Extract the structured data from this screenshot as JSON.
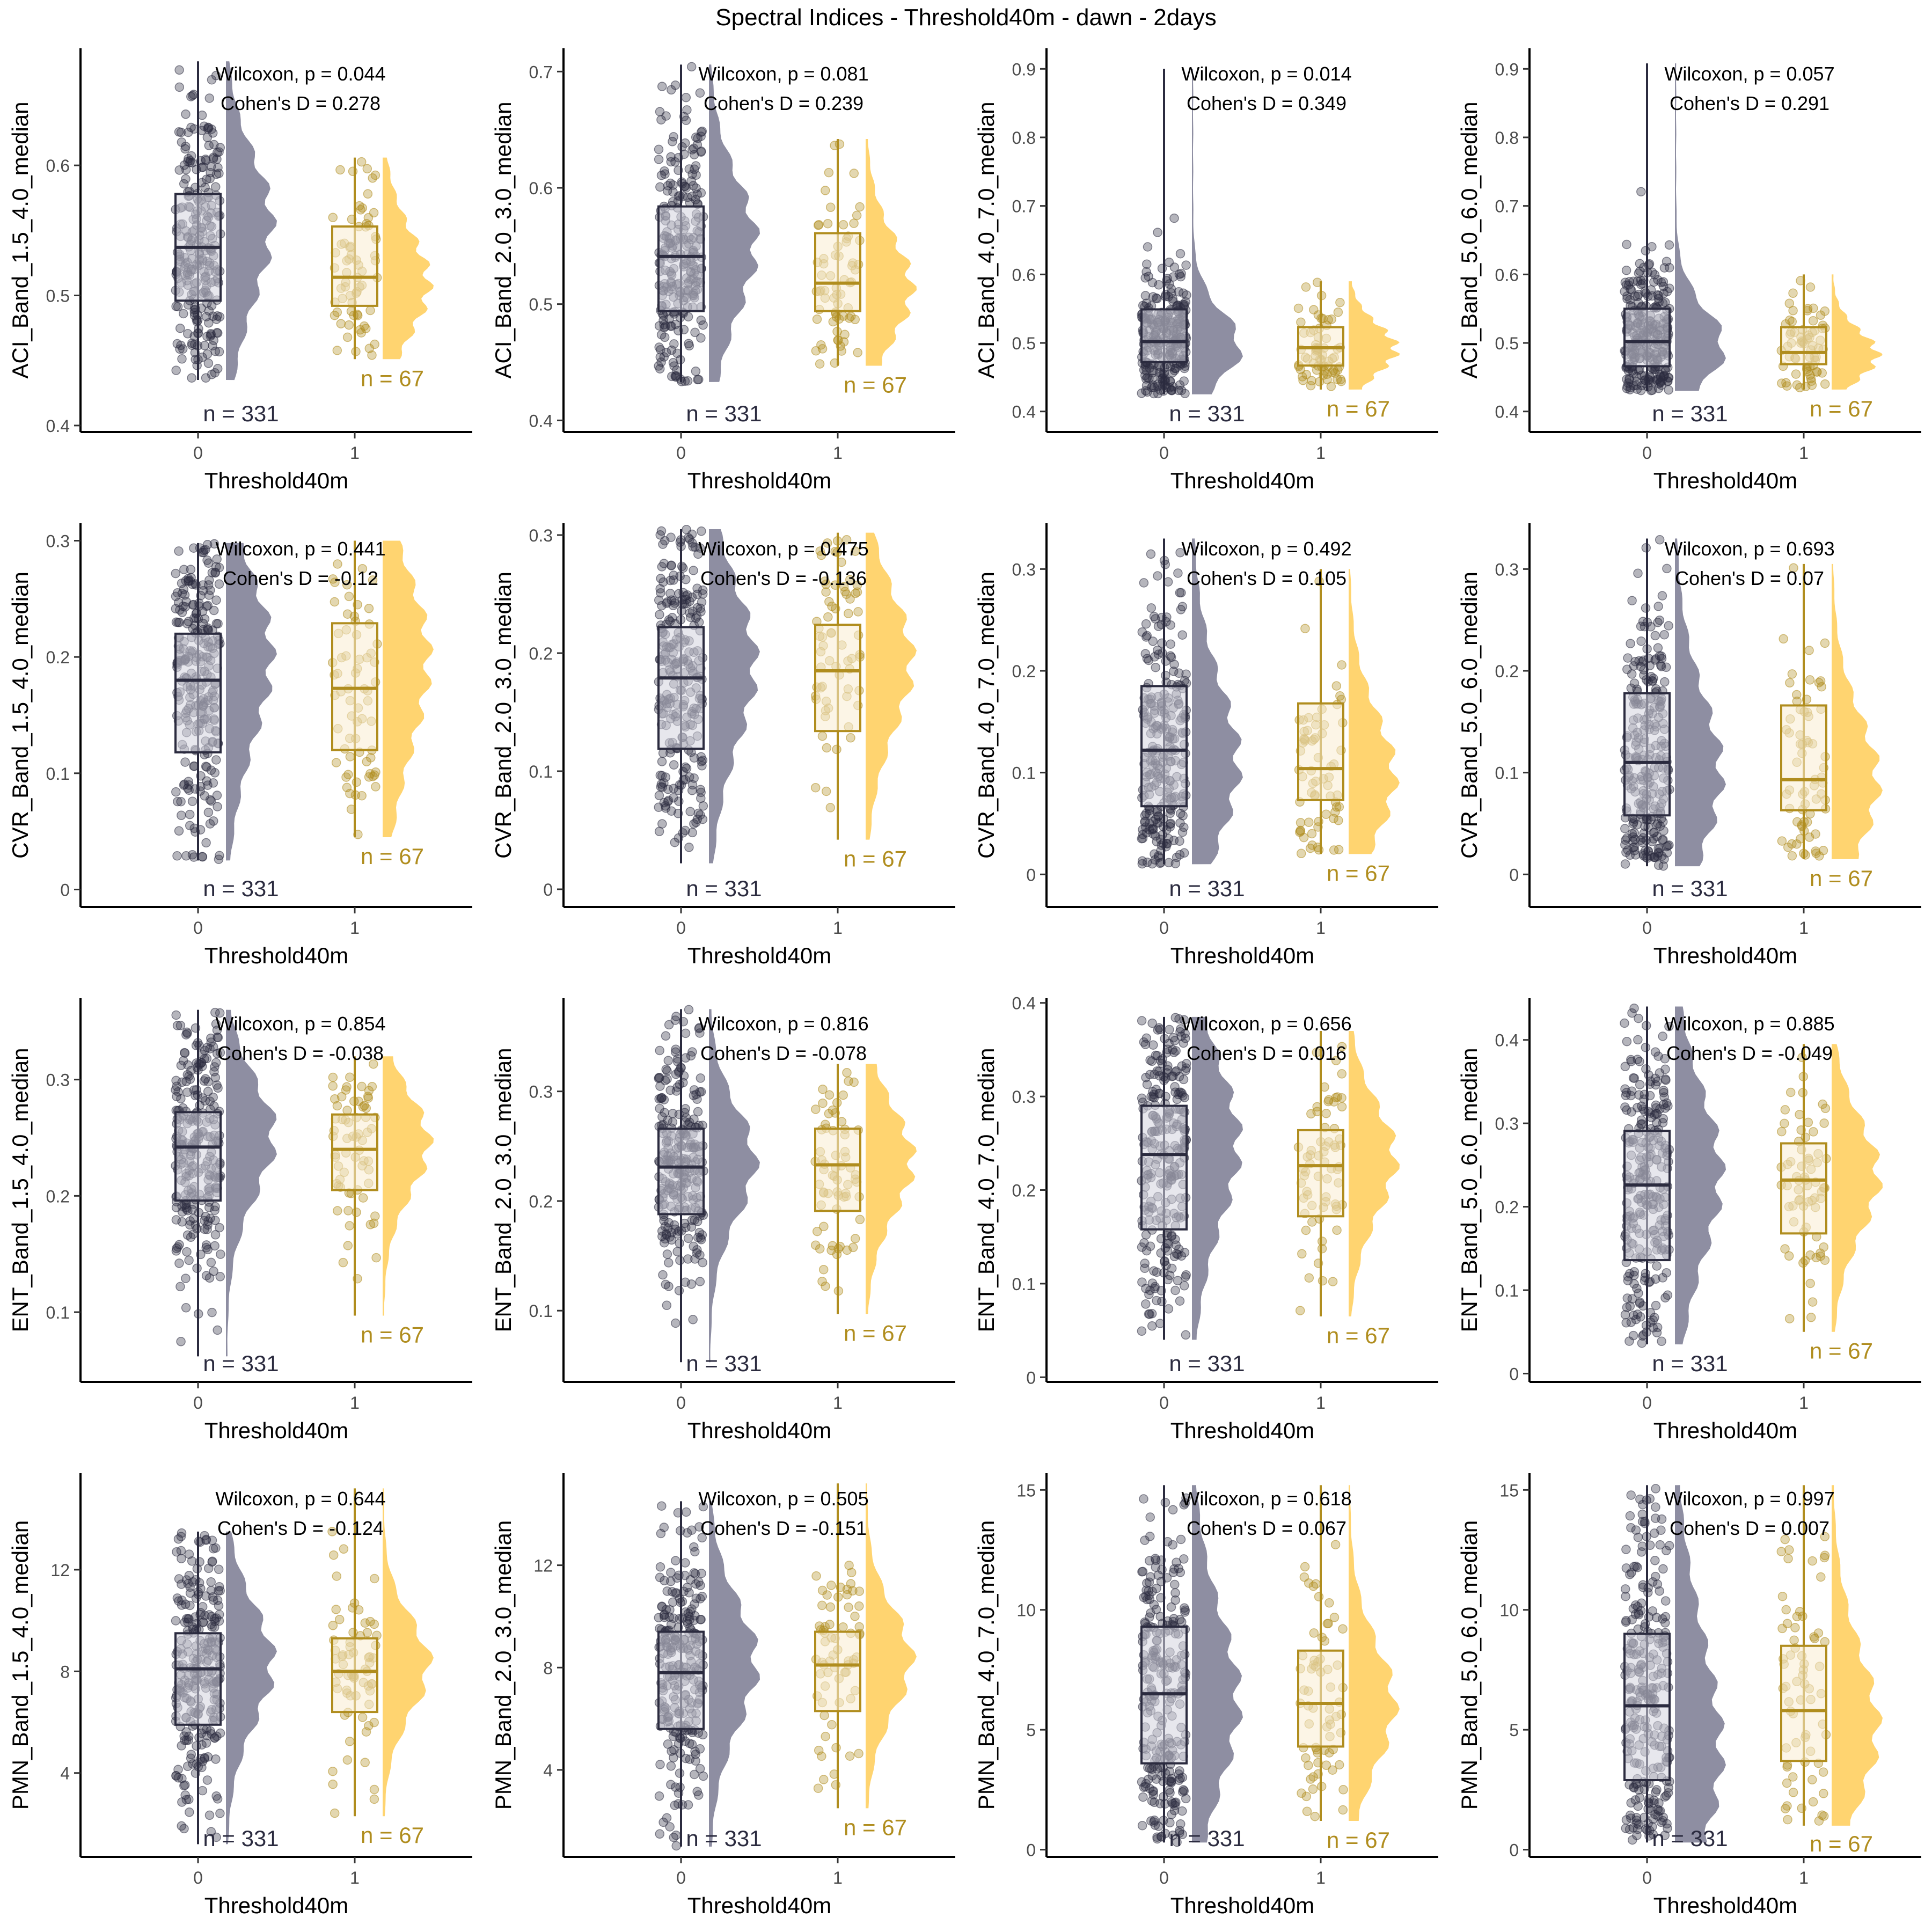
{
  "page": {
    "title": "Spectral Indices - Threshold40m - dawn - 2days"
  },
  "colors": {
    "group0": "#2b2b3f",
    "group0_density": "#8e8ea2",
    "group0_box_fill": "#d4d4de",
    "group1": "#b08d1e",
    "group1_density": "#ffd470",
    "group1_box_fill": "#faecd2",
    "axis": "#000000",
    "tick_text": "#4d4d4d"
  },
  "chart_data": [
    {
      "type": "box-violin",
      "ylabel": "ACI_Band_1.5_4.0_median",
      "xlabel": "Threshold40m",
      "categories": [
        "0",
        "1"
      ],
      "ylim": [
        0.395,
        0.69
      ],
      "yticks": [
        0.4,
        0.5,
        0.6
      ],
      "wilcoxon": "Wilcoxon, p = 0.044",
      "cohens_d": "Cohen's D = 0.278",
      "groups": [
        {
          "label": "n = 331",
          "n": 331,
          "min": 0.435,
          "q1": 0.496,
          "median": 0.537,
          "q3": 0.578,
          "max": 0.68,
          "mode": 0.57
        },
        {
          "label": "n = 67",
          "n": 67,
          "min": 0.451,
          "q1": 0.492,
          "median": 0.514,
          "q3": 0.553,
          "max": 0.606,
          "mode": 0.505
        }
      ]
    },
    {
      "type": "box-violin",
      "ylabel": "ACI_Band_2.0_3.0_median",
      "xlabel": "Threshold40m",
      "categories": [
        "0",
        "1"
      ],
      "ylim": [
        0.39,
        0.72
      ],
      "yticks": [
        0.4,
        0.5,
        0.6,
        0.7
      ],
      "wilcoxon": "Wilcoxon, p = 0.081",
      "cohens_d": "Cohen's D = 0.239",
      "groups": [
        {
          "label": "n = 331",
          "n": 331,
          "min": 0.433,
          "q1": 0.494,
          "median": 0.541,
          "q3": 0.584,
          "max": 0.706,
          "mode": 0.56
        },
        {
          "label": "n = 67",
          "n": 67,
          "min": 0.447,
          "q1": 0.494,
          "median": 0.518,
          "q3": 0.561,
          "max": 0.642,
          "mode": 0.51
        }
      ]
    },
    {
      "type": "box-violin",
      "ylabel": "ACI_Band_4.0_7.0_median",
      "xlabel": "Threshold40m",
      "categories": [
        "0",
        "1"
      ],
      "ylim": [
        0.37,
        0.93
      ],
      "yticks": [
        0.4,
        0.5,
        0.6,
        0.7,
        0.8,
        0.9
      ],
      "wilcoxon": "Wilcoxon, p = 0.014",
      "cohens_d": "Cohen's D = 0.349",
      "groups": [
        {
          "label": "n = 331",
          "n": 331,
          "min": 0.425,
          "q1": 0.472,
          "median": 0.502,
          "q3": 0.549,
          "max": 0.9,
          "mode": 0.49
        },
        {
          "label": "n = 67",
          "n": 67,
          "min": 0.432,
          "q1": 0.467,
          "median": 0.493,
          "q3": 0.523,
          "max": 0.59,
          "mode": 0.49
        }
      ]
    },
    {
      "type": "box-violin",
      "ylabel": "ACI_Band_5.0_6.0_median",
      "xlabel": "Threshold40m",
      "categories": [
        "0",
        "1"
      ],
      "ylim": [
        0.37,
        0.93
      ],
      "yticks": [
        0.4,
        0.5,
        0.6,
        0.7,
        0.8,
        0.9
      ],
      "wilcoxon": "Wilcoxon, p = 0.057",
      "cohens_d": "Cohen's D = 0.291",
      "groups": [
        {
          "label": "n = 331",
          "n": 331,
          "min": 0.43,
          "q1": 0.466,
          "median": 0.502,
          "q3": 0.55,
          "max": 0.908,
          "mode": 0.49
        },
        {
          "label": "n = 67",
          "n": 67,
          "min": 0.432,
          "q1": 0.469,
          "median": 0.486,
          "q3": 0.523,
          "max": 0.6,
          "mode": 0.48
        }
      ]
    },
    {
      "type": "box-violin",
      "ylabel": "CVR_Band_1.5_4.0_median",
      "xlabel": "Threshold40m",
      "categories": [
        "0",
        "1"
      ],
      "ylim": [
        -0.015,
        0.315
      ],
      "yticks": [
        0.0,
        0.1,
        0.2,
        0.3
      ],
      "wilcoxon": "Wilcoxon, p = 0.441",
      "cohens_d": "Cohen's D = -0.12",
      "groups": [
        {
          "label": "n = 331",
          "n": 331,
          "min": 0.025,
          "q1": 0.118,
          "median": 0.18,
          "q3": 0.22,
          "max": 0.298,
          "mode": 0.22
        },
        {
          "label": "n = 67",
          "n": 67,
          "min": 0.045,
          "q1": 0.12,
          "median": 0.173,
          "q3": 0.229,
          "max": 0.3,
          "mode": 0.22
        }
      ]
    },
    {
      "type": "box-violin",
      "ylabel": "CVR_Band_2.0_3.0_median",
      "xlabel": "Threshold40m",
      "categories": [
        "0",
        "1"
      ],
      "ylim": [
        -0.015,
        0.31
      ],
      "yticks": [
        0.0,
        0.1,
        0.2,
        0.3
      ],
      "wilcoxon": "Wilcoxon, p = 0.475",
      "cohens_d": "Cohen's D = -0.136",
      "groups": [
        {
          "label": "n = 331",
          "n": 331,
          "min": 0.022,
          "q1": 0.119,
          "median": 0.179,
          "q3": 0.222,
          "max": 0.305,
          "mode": 0.2
        },
        {
          "label": "n = 67",
          "n": 67,
          "min": 0.042,
          "q1": 0.134,
          "median": 0.185,
          "q3": 0.224,
          "max": 0.302,
          "mode": 0.2
        }
      ]
    },
    {
      "type": "box-violin",
      "ylabel": "CVR_Band_4.0_7.0_median",
      "xlabel": "Threshold40m",
      "categories": [
        "0",
        "1"
      ],
      "ylim": [
        -0.032,
        0.345
      ],
      "yticks": [
        0.0,
        0.1,
        0.2,
        0.3
      ],
      "wilcoxon": "Wilcoxon, p = 0.492",
      "cohens_d": "Cohen's D = 0.105",
      "groups": [
        {
          "label": "n = 331",
          "n": 331,
          "min": 0.01,
          "q1": 0.067,
          "median": 0.122,
          "q3": 0.185,
          "max": 0.33,
          "mode": 0.1
        },
        {
          "label": "n = 67",
          "n": 67,
          "min": 0.02,
          "q1": 0.073,
          "median": 0.104,
          "q3": 0.168,
          "max": 0.3,
          "mode": 0.09
        }
      ]
    },
    {
      "type": "box-violin",
      "ylabel": "CVR_Band_5.0_6.0_median",
      "xlabel": "Threshold40m",
      "categories": [
        "0",
        "1"
      ],
      "ylim": [
        -0.032,
        0.345
      ],
      "yticks": [
        0.0,
        0.1,
        0.2,
        0.3
      ],
      "wilcoxon": "Wilcoxon, p = 0.693",
      "cohens_d": "Cohen's D = 0.07",
      "groups": [
        {
          "label": "n = 331",
          "n": 331,
          "min": 0.008,
          "q1": 0.058,
          "median": 0.11,
          "q3": 0.178,
          "max": 0.33,
          "mode": 0.09
        },
        {
          "label": "n = 67",
          "n": 67,
          "min": 0.015,
          "q1": 0.063,
          "median": 0.093,
          "q3": 0.166,
          "max": 0.305,
          "mode": 0.09
        }
      ]
    },
    {
      "type": "box-violin",
      "ylabel": "ENT_Band_1.5_4.0_median",
      "xlabel": "Threshold40m",
      "categories": [
        "0",
        "1"
      ],
      "ylim": [
        0.04,
        0.37
      ],
      "yticks": [
        0.1,
        0.2,
        0.3
      ],
      "wilcoxon": "Wilcoxon, p = 0.854",
      "cohens_d": "Cohen's D = -0.038",
      "groups": [
        {
          "label": "n = 331",
          "n": 331,
          "min": 0.062,
          "q1": 0.196,
          "median": 0.242,
          "q3": 0.272,
          "max": 0.36,
          "mode": 0.26
        },
        {
          "label": "n = 67",
          "n": 67,
          "min": 0.097,
          "q1": 0.205,
          "median": 0.24,
          "q3": 0.27,
          "max": 0.32,
          "mode": 0.25
        }
      ]
    },
    {
      "type": "box-violin",
      "ylabel": "ENT_Band_2.0_3.0_median",
      "xlabel": "Threshold40m",
      "categories": [
        "0",
        "1"
      ],
      "ylim": [
        0.035,
        0.385
      ],
      "yticks": [
        0.1,
        0.2,
        0.3
      ],
      "wilcoxon": "Wilcoxon, p = 0.816",
      "cohens_d": "Cohen's D = -0.078",
      "groups": [
        {
          "label": "n = 331",
          "n": 331,
          "min": 0.053,
          "q1": 0.188,
          "median": 0.231,
          "q3": 0.266,
          "max": 0.375,
          "mode": 0.24
        },
        {
          "label": "n = 67",
          "n": 67,
          "min": 0.097,
          "q1": 0.191,
          "median": 0.233,
          "q3": 0.266,
          "max": 0.325,
          "mode": 0.24
        }
      ]
    },
    {
      "type": "box-violin",
      "ylabel": "ENT_Band_4.0_7.0_median",
      "xlabel": "Threshold40m",
      "categories": [
        "0",
        "1"
      ],
      "ylim": [
        -0.005,
        0.405
      ],
      "yticks": [
        0.0,
        0.1,
        0.2,
        0.3,
        0.4
      ],
      "wilcoxon": "Wilcoxon, p = 0.656",
      "cohens_d": "Cohen's D = 0.016",
      "groups": [
        {
          "label": "n = 331",
          "n": 331,
          "min": 0.04,
          "q1": 0.158,
          "median": 0.238,
          "q3": 0.29,
          "max": 0.385,
          "mode": 0.26
        },
        {
          "label": "n = 67",
          "n": 67,
          "min": 0.065,
          "q1": 0.172,
          "median": 0.226,
          "q3": 0.264,
          "max": 0.37,
          "mode": 0.24
        }
      ]
    },
    {
      "type": "box-violin",
      "ylabel": "ENT_Band_5.0_6.0_median",
      "xlabel": "Threshold40m",
      "categories": [
        "0",
        "1"
      ],
      "ylim": [
        -0.01,
        0.45
      ],
      "yticks": [
        0.0,
        0.1,
        0.2,
        0.3,
        0.4
      ],
      "wilcoxon": "Wilcoxon, p = 0.885",
      "cohens_d": "Cohen's D = -0.049",
      "groups": [
        {
          "label": "n = 331",
          "n": 331,
          "min": 0.035,
          "q1": 0.136,
          "median": 0.226,
          "q3": 0.291,
          "max": 0.44,
          "mode": 0.25
        },
        {
          "label": "n = 67",
          "n": 67,
          "min": 0.05,
          "q1": 0.168,
          "median": 0.232,
          "q3": 0.276,
          "max": 0.395,
          "mode": 0.24
        }
      ]
    },
    {
      "type": "box-violin",
      "ylabel": "PMN_Band_1.5_4.0_median",
      "xlabel": "Threshold40m",
      "categories": [
        "0",
        "1"
      ],
      "ylim": [
        0.7,
        15.8
      ],
      "yticks": [
        4,
        8,
        12
      ],
      "wilcoxon": "Wilcoxon, p = 0.644",
      "cohens_d": "Cohen's D = -0.124",
      "groups": [
        {
          "label": "n = 331",
          "n": 331,
          "min": 1.2,
          "q1": 5.9,
          "median": 8.1,
          "q3": 9.5,
          "max": 13.5,
          "mode": 8.5
        },
        {
          "label": "n = 67",
          "n": 67,
          "min": 2.3,
          "q1": 6.4,
          "median": 8.0,
          "q3": 9.3,
          "max": 15.2,
          "mode": 8.5
        }
      ]
    },
    {
      "type": "box-violin",
      "ylabel": "PMN_Band_2.0_3.0_median",
      "xlabel": "Threshold40m",
      "categories": [
        "0",
        "1"
      ],
      "ylim": [
        0.6,
        15.6
      ],
      "yticks": [
        4,
        8,
        12
      ],
      "wilcoxon": "Wilcoxon, p = 0.505",
      "cohens_d": "Cohen's D = -0.151",
      "groups": [
        {
          "label": "n = 331",
          "n": 331,
          "min": 1.0,
          "q1": 5.6,
          "median": 7.8,
          "q3": 9.4,
          "max": 14.5,
          "mode": 8.5
        },
        {
          "label": "n = 67",
          "n": 67,
          "min": 2.5,
          "q1": 6.3,
          "median": 8.1,
          "q3": 9.4,
          "max": 15.2,
          "mode": 8.5
        }
      ]
    },
    {
      "type": "box-violin",
      "ylabel": "PMN_Band_4.0_7.0_median",
      "xlabel": "Threshold40m",
      "categories": [
        "0",
        "1"
      ],
      "ylim": [
        -0.3,
        15.7
      ],
      "yticks": [
        0,
        5,
        10,
        15
      ],
      "wilcoxon": "Wilcoxon, p = 0.618",
      "cohens_d": "Cohen's D = 0.067",
      "groups": [
        {
          "label": "n = 331",
          "n": 331,
          "min": 0.3,
          "q1": 3.6,
          "median": 6.5,
          "q3": 9.3,
          "max": 15.2,
          "mode": 6.0
        },
        {
          "label": "n = 67",
          "n": 67,
          "min": 1.2,
          "q1": 4.3,
          "median": 6.1,
          "q3": 8.3,
          "max": 15.2,
          "mode": 6.0
        }
      ]
    },
    {
      "type": "box-violin",
      "ylabel": "PMN_Band_5.0_6.0_median",
      "xlabel": "Threshold40m",
      "categories": [
        "0",
        "1"
      ],
      "ylim": [
        -0.3,
        15.7
      ],
      "yticks": [
        0,
        5,
        10,
        15
      ],
      "wilcoxon": "Wilcoxon, p = 0.997",
      "cohens_d": "Cohen's D = 0.007",
      "groups": [
        {
          "label": "n = 331",
          "n": 331,
          "min": 0.3,
          "q1": 2.9,
          "median": 6.0,
          "q3": 9.0,
          "max": 15.2,
          "mode": 2.5
        },
        {
          "label": "n = 67",
          "n": 67,
          "min": 1.0,
          "q1": 3.7,
          "median": 5.8,
          "q3": 8.5,
          "max": 15.2,
          "mode": 4.5
        }
      ]
    }
  ]
}
